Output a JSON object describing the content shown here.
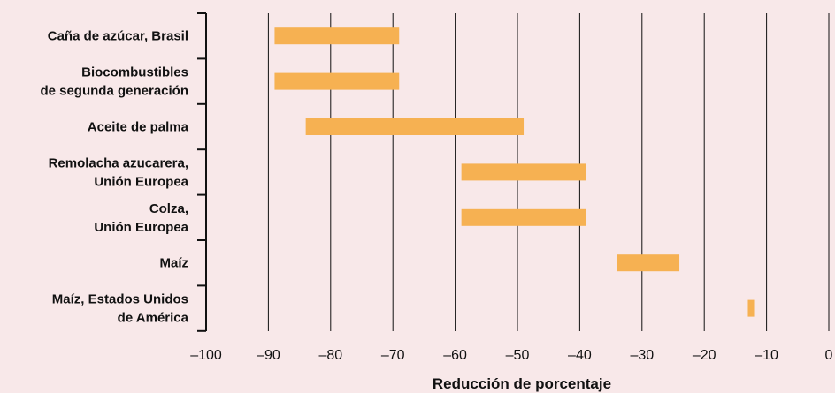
{
  "chart_data": {
    "type": "bar",
    "orientation": "horizontal",
    "bar_style": "range",
    "categories": [
      [
        "Caña de azúcar, Brasil"
      ],
      [
        "Biocombustibles",
        "de segunda generación"
      ],
      [
        "Aceite de palma"
      ],
      [
        "Remolacha azucarera,",
        "Unión Europea"
      ],
      [
        "Colza,",
        "Unión Europea"
      ],
      [
        "Maíz"
      ],
      [
        "Maíz, Estados Unidos",
        "de América"
      ]
    ],
    "ranges": [
      [
        -89,
        -69
      ],
      [
        -89,
        -69
      ],
      [
        -84,
        -49
      ],
      [
        -59,
        -39
      ],
      [
        -59,
        -39
      ],
      [
        -34,
        -24
      ],
      [
        -13,
        -12
      ]
    ],
    "xlabel": "Reducción de porcentaje",
    "xlim": [
      -100,
      0
    ],
    "xticks": [
      -100,
      -90,
      -80,
      -70,
      -60,
      -50,
      -40,
      -30,
      -20,
      -10,
      0
    ],
    "xtick_labels": [
      "–100",
      "–90",
      "–80",
      "–70",
      "–60",
      "–50",
      "–40",
      "–30",
      "–20",
      "–10",
      "0"
    ],
    "grid": "vertical lines",
    "colors": {
      "background": "#f8e8e9",
      "bar": "#f6b152",
      "grid": "#111111",
      "text": "#111111"
    }
  }
}
